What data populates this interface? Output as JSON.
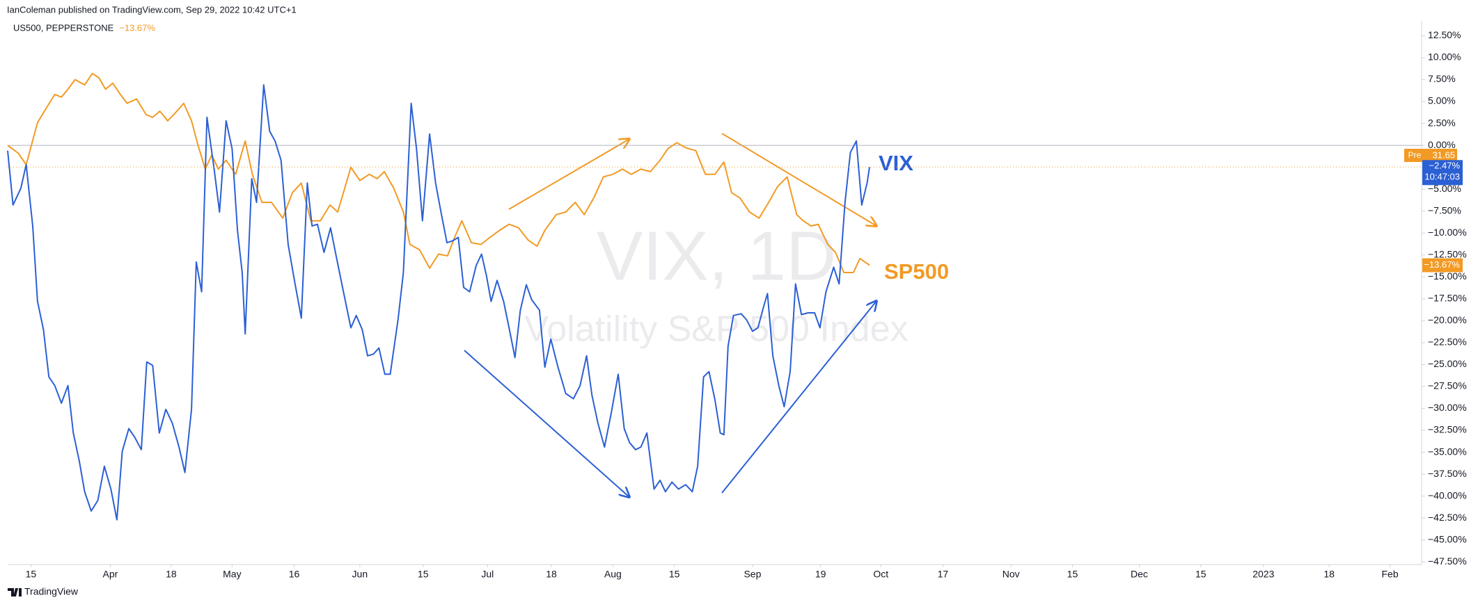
{
  "header": "IanColeman published on TradingView.com, Sep 29, 2022 10:42 UTC+1",
  "footer": "TradingView",
  "chart_data": {
    "type": "line",
    "watermark": "VIX, 1D",
    "watermark_subtitle": "Volatility S&P 500 Index",
    "annotations": [
      "SP500"
    ],
    "pre_label": "Pre",
    "pre_price": 31.65,
    "countdown": "10:47:03",
    "grid": false,
    "xlim": [
      -3.9,
      233
    ],
    "ylim": [
      -47.8,
      14.2
    ],
    "xticks": [
      {
        "value": 0,
        "label": "15"
      },
      {
        "value": 13.3,
        "label": "Apr"
      },
      {
        "value": 23.5,
        "label": "18"
      },
      {
        "value": 33.7,
        "label": "May"
      },
      {
        "value": 44.1,
        "label": "16"
      },
      {
        "value": 55.1,
        "label": "Jun"
      },
      {
        "value": 65.7,
        "label": "15"
      },
      {
        "value": 76.5,
        "label": "Jul"
      },
      {
        "value": 87.2,
        "label": "18"
      },
      {
        "value": 97.5,
        "label": "Aug"
      },
      {
        "value": 107.8,
        "label": "15"
      },
      {
        "value": 120.9,
        "label": "Sep"
      },
      {
        "value": 132.3,
        "label": "19"
      },
      {
        "value": 142.4,
        "label": "Oct"
      },
      {
        "value": 152.8,
        "label": "17"
      },
      {
        "value": 164.2,
        "label": "Nov"
      },
      {
        "value": 174.5,
        "label": "15"
      },
      {
        "value": 185.7,
        "label": "Dec"
      },
      {
        "value": 196,
        "label": "15"
      },
      {
        "value": 206.5,
        "label": "2023"
      },
      {
        "value": 217.5,
        "label": "18"
      },
      {
        "value": 227.7,
        "label": "Feb"
      }
    ],
    "yticks": [
      {
        "value": 12.5,
        "label": "12.50%"
      },
      {
        "value": 10,
        "label": "10.00%"
      },
      {
        "value": 7.5,
        "label": "7.50%"
      },
      {
        "value": 5,
        "label": "5.00%"
      },
      {
        "value": 2.5,
        "label": "2.50%"
      },
      {
        "value": 0,
        "label": "0.00%"
      },
      {
        "value": -2.5,
        "label": "−2.50%"
      },
      {
        "value": -5,
        "label": "−5.00%"
      },
      {
        "value": -7.5,
        "label": "−7.50%"
      },
      {
        "value": -10,
        "label": "−10.00%"
      },
      {
        "value": -12.5,
        "label": "−12.50%"
      },
      {
        "value": -15,
        "label": "−15.00%"
      },
      {
        "value": -17.5,
        "label": "−17.50%"
      },
      {
        "value": -20,
        "label": "−20.00%"
      },
      {
        "value": -22.5,
        "label": "−22.50%"
      },
      {
        "value": -25,
        "label": "−25.00%"
      },
      {
        "value": -27.5,
        "label": "−27.50%"
      },
      {
        "value": -30,
        "label": "−30.00%"
      },
      {
        "value": -32.5,
        "label": "−32.50%"
      },
      {
        "value": -35,
        "label": "−35.00%"
      },
      {
        "value": -37.5,
        "label": "−37.50%"
      },
      {
        "value": -40,
        "label": "−40.00%"
      },
      {
        "value": -42.5,
        "label": "−42.50%"
      },
      {
        "value": -45,
        "label": "−45.00%"
      },
      {
        "value": -47.5,
        "label": "−47.50%"
      }
    ],
    "series": [
      {
        "name": "US500, PEPPERSTONE",
        "color": "#f29a24",
        "last_label": "−13.67%",
        "x": [
          -3.9,
          -2.1,
          -0.8,
          1.1,
          2.7,
          4.0,
          5.1,
          6.2,
          7.4,
          9.0,
          10.3,
          11.4,
          12.5,
          13.7,
          15.0,
          16.1,
          17.7,
          19.3,
          20.4,
          21.6,
          22.9,
          24.2,
          25.6,
          26.9,
          28.0,
          29.2,
          30.3,
          31.4,
          32.7,
          34.3,
          35.9,
          37.1,
          38.7,
          40.3,
          42.2,
          43.8,
          45.3,
          46.9,
          48.5,
          50.1,
          51.4,
          53.6,
          55.1,
          56.7,
          58.0,
          59.2,
          60.8,
          62.4,
          63.5,
          65.1,
          66.8,
          68.3,
          69.8,
          71.1,
          72.2,
          73.8,
          75.4,
          76.9,
          78.5,
          80.1,
          81.7,
          83.3,
          84.8,
          86.1,
          88.0,
          89.6,
          91.2,
          92.7,
          94.3,
          95.9,
          97.5,
          99.1,
          100.6,
          102.2,
          103.8,
          105.4,
          106.7,
          108.2,
          109.8,
          111.4,
          113.0,
          114.6,
          116.1,
          117.4,
          118.8,
          120.4,
          122.0,
          123.6,
          125.1,
          126.7,
          128.3,
          129.4,
          130.7,
          131.9,
          133.5,
          134.8,
          136.2,
          137.8,
          138.9,
          140.5
        ],
        "values": [
          0.0,
          -0.9,
          -2.2,
          2.6,
          4.4,
          5.8,
          5.5,
          6.4,
          7.5,
          6.9,
          8.2,
          7.7,
          6.4,
          7.1,
          5.8,
          4.8,
          5.3,
          3.5,
          3.2,
          3.9,
          2.8,
          3.7,
          4.8,
          2.8,
          0.0,
          -2.7,
          -1.1,
          -2.7,
          -1.7,
          -3.3,
          0.5,
          -3.3,
          -6.5,
          -6.5,
          -8.3,
          -5.4,
          -4.3,
          -8.6,
          -8.6,
          -6.8,
          -7.6,
          -2.5,
          -4.0,
          -3.3,
          -3.8,
          -3.0,
          -4.9,
          -7.6,
          -11.3,
          -11.9,
          -14.0,
          -12.4,
          -12.6,
          -10.3,
          -8.6,
          -11.1,
          -11.3,
          -10.5,
          -9.7,
          -9.0,
          -9.4,
          -10.8,
          -11.5,
          -9.7,
          -7.9,
          -7.6,
          -6.5,
          -7.9,
          -6.0,
          -3.6,
          -3.3,
          -2.7,
          -3.3,
          -2.7,
          -3.0,
          -1.7,
          -0.4,
          0.3,
          -0.3,
          -0.6,
          -3.3,
          -3.3,
          -1.9,
          -5.4,
          -6.0,
          -7.6,
          -8.3,
          -6.5,
          -4.7,
          -3.6,
          -7.9,
          -8.6,
          -9.2,
          -9.0,
          -11.3,
          -12.2,
          -14.5,
          -14.5,
          -12.9,
          -13.67
        ]
      },
      {
        "name": "VIX",
        "color": "#2b5fd4",
        "last_label": "−2.47%",
        "x": [
          -3.9,
          -3.0,
          -1.7,
          -0.8,
          0.3,
          1.1,
          2.1,
          3.0,
          4.0,
          5.1,
          6.2,
          7.1,
          8.1,
          9.0,
          10.1,
          11.2,
          12.3,
          13.4,
          14.4,
          15.3,
          16.4,
          17.4,
          18.5,
          19.4,
          20.4,
          21.5,
          22.6,
          23.7,
          24.8,
          25.8,
          26.9,
          27.7,
          28.6,
          29.5,
          30.7,
          31.6,
          32.7,
          33.7,
          34.6,
          35.4,
          35.9,
          37.0,
          37.8,
          39.0,
          40.0,
          40.9,
          41.9,
          43.1,
          44.2,
          45.3,
          46.3,
          47.1,
          48.0,
          49.1,
          50.2,
          51.4,
          52.3,
          53.6,
          54.5,
          55.5,
          56.4,
          57.4,
          58.3,
          59.3,
          60.2,
          61.5,
          62.4,
          63.7,
          64.6,
          65.6,
          66.8,
          67.8,
          68.7,
          69.7,
          70.6,
          71.6,
          72.5,
          73.5,
          74.6,
          75.5,
          76.3,
          77.1,
          78.1,
          79.2,
          80.1,
          81.1,
          82.0,
          83.0,
          83.9,
          85.2,
          86.1,
          87.1,
          88.3,
          89.6,
          90.9,
          92.0,
          93.1,
          94.0,
          95.0,
          96.1,
          97.2,
          98.4,
          99.4,
          100.3,
          101.3,
          102.2,
          103.2,
          104.4,
          105.4,
          106.3,
          107.4,
          108.5,
          109.7,
          110.8,
          111.7,
          112.7,
          113.6,
          114.6,
          115.5,
          116.1,
          116.8,
          117.7,
          119.0,
          119.9,
          120.9,
          121.8,
          122.8,
          123.4,
          124.3,
          125.3,
          126.2,
          127.2,
          128.1,
          129.1,
          130.2,
          131.3,
          132.2,
          133.2,
          134.5,
          135.4,
          136.4,
          137.3,
          138.3,
          139.2,
          140.1,
          140.5
        ],
        "values": [
          -0.6,
          -6.8,
          -4.9,
          -2.2,
          -9.2,
          -17.8,
          -21.0,
          -26.4,
          -27.4,
          -29.4,
          -27.4,
          -32.8,
          -36.0,
          -39.5,
          -41.7,
          -40.5,
          -36.6,
          -39.2,
          -42.7,
          -34.9,
          -32.3,
          -33.3,
          -34.7,
          -24.7,
          -25.1,
          -32.8,
          -30.1,
          -31.7,
          -34.4,
          -37.3,
          -30.1,
          -13.3,
          -16.7,
          3.2,
          -2.7,
          -7.6,
          2.8,
          -0.4,
          -9.7,
          -14.5,
          -21.5,
          -3.8,
          -6.5,
          6.9,
          1.6,
          0.5,
          -1.7,
          -11.3,
          -15.6,
          -19.7,
          -4.3,
          -9.2,
          -9.0,
          -12.2,
          -9.4,
          -13.5,
          -16.5,
          -20.8,
          -19.4,
          -21.0,
          -24.0,
          -23.8,
          -23.1,
          -26.1,
          -26.1,
          -19.9,
          -14.5,
          4.8,
          -0.4,
          -8.6,
          1.3,
          -4.3,
          -7.6,
          -11.1,
          -10.9,
          -10.5,
          -16.2,
          -16.7,
          -13.7,
          -12.4,
          -14.8,
          -17.8,
          -15.4,
          -17.8,
          -20.8,
          -24.2,
          -18.8,
          -15.9,
          -17.6,
          -18.8,
          -25.3,
          -22.1,
          -25.3,
          -28.3,
          -28.9,
          -27.4,
          -24.0,
          -28.5,
          -31.7,
          -34.4,
          -30.6,
          -26.1,
          -32.3,
          -33.9,
          -34.7,
          -34.4,
          -32.8,
          -39.2,
          -38.2,
          -39.5,
          -38.4,
          -39.2,
          -38.7,
          -39.5,
          -36.6,
          -26.4,
          -25.8,
          -29.0,
          -32.8,
          -33.0,
          -22.9,
          -19.4,
          -19.2,
          -19.9,
          -21.2,
          -20.8,
          -18.3,
          -16.9,
          -24.0,
          -27.4,
          -29.8,
          -25.8,
          -15.8,
          -19.3,
          -19.1,
          -19.1,
          -20.8,
          -16.7,
          -13.9,
          -15.8,
          -6.5,
          -0.8,
          0.5,
          -6.8,
          -4.3,
          -2.47
        ]
      }
    ]
  }
}
